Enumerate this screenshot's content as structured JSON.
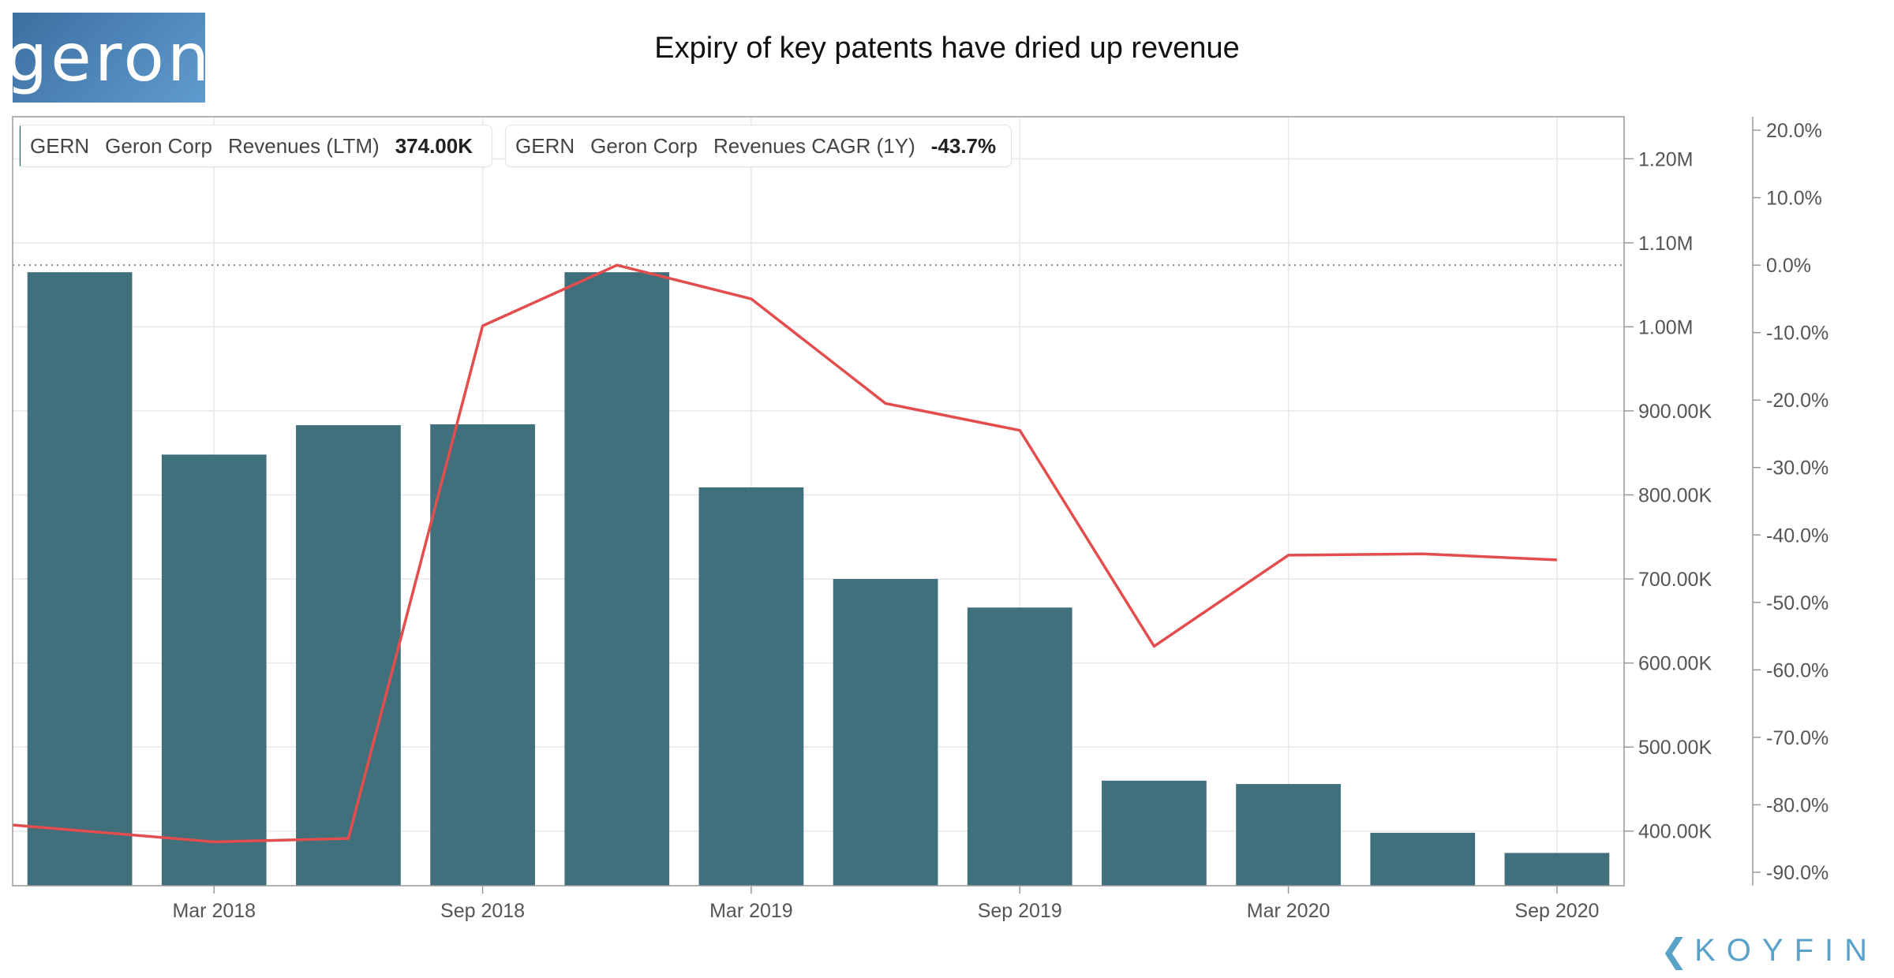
{
  "logo": {
    "text": "geron"
  },
  "title": "Expiry of key patents have dried up revenue",
  "legend": [
    {
      "ticker": "GERN",
      "company": "Geron Corp",
      "metric": "Revenues (LTM)",
      "value": "374.00K",
      "color": "#1e5a6b"
    },
    {
      "ticker": "GERN",
      "company": "Geron Corp",
      "metric": "Revenues CAGR (1Y)",
      "value": "-43.7%",
      "color": "#e34d4d"
    }
  ],
  "brand": {
    "text": "KOYFIN",
    "icon": "koyfin-chevron-icon"
  },
  "chart_data": {
    "type": "bar",
    "title": "Expiry of key patents have dried up revenue",
    "x_ticks": [
      "Mar 2018",
      "Sep 2018",
      "Mar 2019",
      "Sep 2019",
      "Mar 2020",
      "Sep 2020"
    ],
    "left_axis": {
      "ticks": [
        "1.20M",
        "1.10M",
        "1.00M",
        "900.00K",
        "800.00K",
        "700.00K",
        "600.00K",
        "500.00K",
        "400.00K"
      ],
      "range": [
        335000,
        1250000
      ]
    },
    "right_axis": {
      "ticks": [
        "20.0%",
        "10.0%",
        "0.0%",
        "-10.0%",
        "-20.0%",
        "-30.0%",
        "-40.0%",
        "-50.0%",
        "-60.0%",
        "-70.0%",
        "-80.0%",
        "-90.0%"
      ],
      "range": [
        -92.0,
        22.0
      ]
    },
    "series": [
      {
        "name": "Revenues (LTM)",
        "type": "bar",
        "color": "#40707b",
        "values": [
          1065000,
          848000,
          883000,
          884000,
          1065000,
          809000,
          700000,
          666000,
          460000,
          456000,
          398000,
          374000
        ]
      },
      {
        "name": "Revenues CAGR (1Y)",
        "type": "line",
        "color": "#e34d4d",
        "values": [
          -83.0,
          -85.5,
          -85.0,
          -9.0,
          0.0,
          -5.0,
          -20.5,
          -24.5,
          -56.5,
          -43.0,
          -42.8,
          -43.7
        ]
      }
    ],
    "reference_line": {
      "value": 0.0,
      "style": "dotted",
      "axis": "right"
    },
    "grid": true,
    "legend_position": "top-left"
  }
}
